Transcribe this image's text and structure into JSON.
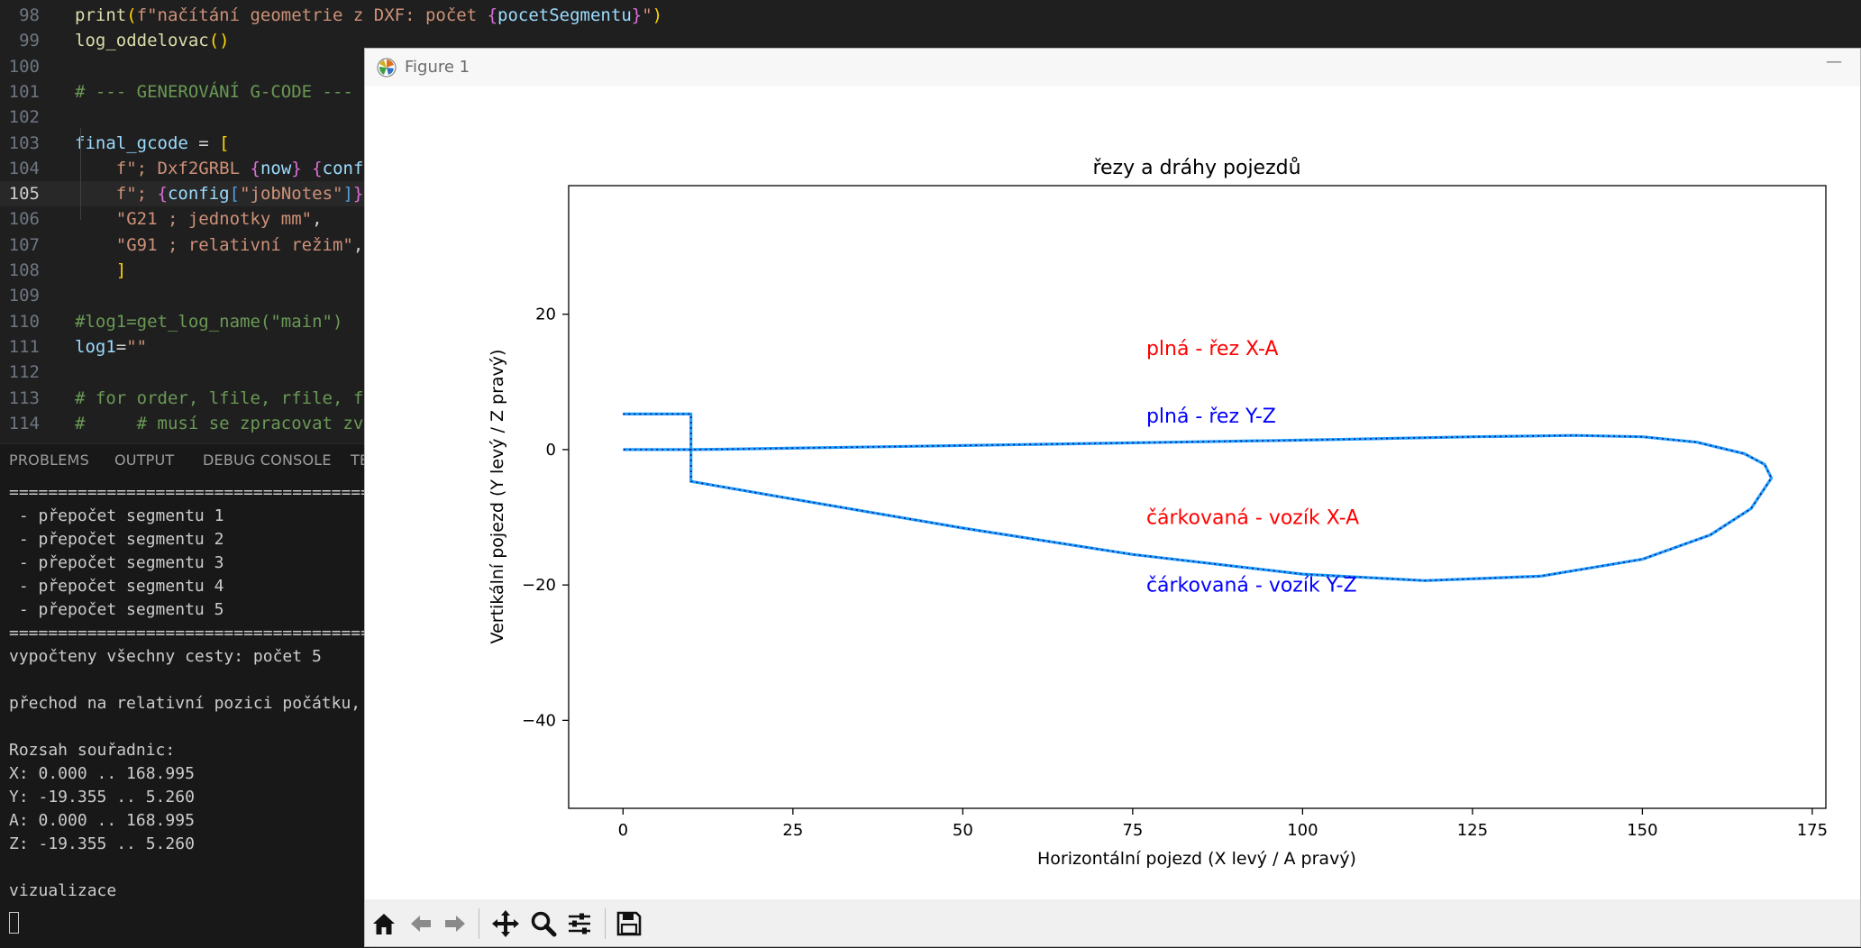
{
  "editor": {
    "lines": [
      {
        "num": "98",
        "active": false,
        "tokens": [
          {
            "t": "print",
            "c": "t-fn"
          },
          {
            "t": "(",
            "c": "t-br2"
          },
          {
            "t": "f\"načítání geometrie z DXF: počet ",
            "c": "t-str"
          },
          {
            "t": "{",
            "c": "t-brace"
          },
          {
            "t": "pocetSegmentu",
            "c": "t-var"
          },
          {
            "t": "}",
            "c": "t-brace"
          },
          {
            "t": "\"",
            "c": "t-str"
          },
          {
            "t": ")",
            "c": "t-br2"
          }
        ]
      },
      {
        "num": "99",
        "active": false,
        "tokens": [
          {
            "t": "log_oddelovac",
            "c": "t-fn"
          },
          {
            "t": "()",
            "c": "t-br2"
          }
        ]
      },
      {
        "num": "100",
        "active": false,
        "tokens": []
      },
      {
        "num": "101",
        "active": false,
        "tokens": [
          {
            "t": "# --- GENEROVÁNÍ G-CODE ---",
            "c": "t-cm"
          }
        ]
      },
      {
        "num": "102",
        "active": false,
        "tokens": []
      },
      {
        "num": "103",
        "active": false,
        "tokens": [
          {
            "t": "final_gcode",
            "c": "t-var"
          },
          {
            "t": " = ",
            "c": "t-op"
          },
          {
            "t": "[",
            "c": "t-br2"
          }
        ]
      },
      {
        "num": "104",
        "active": false,
        "tokens": [
          {
            "t": "    ",
            "c": "t-op"
          },
          {
            "t": "f\"; Dxf2GRBL ",
            "c": "t-str"
          },
          {
            "t": "{",
            "c": "t-brace"
          },
          {
            "t": "now",
            "c": "t-var"
          },
          {
            "t": "}",
            "c": "t-brace"
          },
          {
            "t": " ",
            "c": "t-str"
          },
          {
            "t": "{",
            "c": "t-brace"
          },
          {
            "t": "config",
            "c": "t-var"
          }
        ]
      },
      {
        "num": "105",
        "active": true,
        "tokens": [
          {
            "t": "    ",
            "c": "t-op"
          },
          {
            "t": "f\"; ",
            "c": "t-str"
          },
          {
            "t": "{",
            "c": "t-brace"
          },
          {
            "t": "config",
            "c": "t-var"
          },
          {
            "t": "[",
            "c": "t-kw"
          },
          {
            "t": "\"jobNotes\"",
            "c": "t-str"
          },
          {
            "t": "]",
            "c": "t-kw"
          },
          {
            "t": "}",
            "c": "t-brace"
          }
        ]
      },
      {
        "num": "106",
        "active": false,
        "tokens": [
          {
            "t": "    ",
            "c": "t-op"
          },
          {
            "t": "\"G21 ; jednotky mm\"",
            "c": "t-str"
          },
          {
            "t": ",",
            "c": "t-op"
          }
        ]
      },
      {
        "num": "107",
        "active": false,
        "tokens": [
          {
            "t": "    ",
            "c": "t-op"
          },
          {
            "t": "\"G91 ; relativní režim\"",
            "c": "t-str"
          },
          {
            "t": ",",
            "c": "t-op"
          }
        ]
      },
      {
        "num": "108",
        "active": false,
        "tokens": [
          {
            "t": "    ",
            "c": "t-op"
          },
          {
            "t": "]",
            "c": "t-br2"
          }
        ]
      },
      {
        "num": "109",
        "active": false,
        "tokens": []
      },
      {
        "num": "110",
        "active": false,
        "tokens": [
          {
            "t": "#log1=get_log_name(\"main\")",
            "c": "t-cm"
          }
        ]
      },
      {
        "num": "111",
        "active": false,
        "tokens": [
          {
            "t": "log1",
            "c": "t-var"
          },
          {
            "t": "=",
            "c": "t-op"
          },
          {
            "t": "\"\"",
            "c": "t-str"
          }
        ]
      },
      {
        "num": "112",
        "active": false,
        "tokens": []
      },
      {
        "num": "113",
        "active": false,
        "tokens": [
          {
            "t": "# for order, lfile, rfile, f",
            "c": "t-cm"
          }
        ]
      },
      {
        "num": "114",
        "active": false,
        "tokens": [
          {
            "t": "#     # musí se zpracovat zv",
            "c": "t-cm"
          }
        ]
      }
    ]
  },
  "panel": {
    "tabs": [
      "PROBLEMS",
      "OUTPUT",
      "DEBUG CONSOLE",
      "TE"
    ],
    "terminal_lines": [
      "==========================================",
      " - přepočet segmentu 1",
      " - přepočet segmentu 2",
      " - přepočet segmentu 3",
      " - přepočet segmentu 4",
      " - přepočet segmentu 5",
      "==========================================",
      "vypočteny všechny cesty: počet 5",
      "",
      "přechod na relativní pozici počátku,",
      "",
      "Rozsah souřadnic:",
      "X: 0.000 .. 168.995",
      "Y: -19.355 .. 5.260",
      "A: 0.000 .. 168.995",
      "Z: -19.355 .. 5.260",
      "",
      "vizualizace"
    ]
  },
  "figure": {
    "window_title": "Figure 1",
    "minimize_label": "—",
    "toolbar_icons": [
      "home-icon",
      "back-arrow-icon",
      "forward-arrow-icon",
      "pan-move-icon",
      "zoom-magnifier-icon",
      "configure-subplots-icon",
      "save-floppy-icon"
    ]
  },
  "chart_data": {
    "type": "line",
    "title": "řezy a dráhy pojezdů",
    "xlabel": "Horizontální pojezd (X levý / A pravý)",
    "ylabel": "Vertikální pojezd (Y levý / Z pravý)",
    "xlim": [
      -8,
      177
    ],
    "ylim": [
      -53,
      39
    ],
    "xticks": [
      0,
      25,
      50,
      75,
      100,
      125,
      150,
      175
    ],
    "yticks": [
      20,
      0,
      -20,
      -40
    ],
    "grid": false,
    "annotations": [
      {
        "text": "plná - řez X-A",
        "x": 77,
        "y": 14,
        "color": "#ff0000"
      },
      {
        "text": "plná - řez Y-Z",
        "x": 77,
        "y": 4,
        "color": "#0000ff"
      },
      {
        "text": "čárkovaná - vozík X-A",
        "x": 77,
        "y": -11,
        "color": "#ff0000"
      },
      {
        "text": "čárkovaná - vozík Y-Z",
        "x": 77,
        "y": -21,
        "color": "#0000ff"
      }
    ],
    "series": [
      {
        "style": "solid",
        "color": "#1f9fff",
        "points": [
          [
            0,
            5.26
          ],
          [
            10,
            5.26
          ],
          [
            10,
            -4.7
          ],
          [
            25,
            -7.3
          ],
          [
            50,
            -11.6
          ],
          [
            75,
            -15.5
          ],
          [
            100,
            -18.4
          ],
          [
            118,
            -19.355
          ],
          [
            135,
            -18.7
          ],
          [
            150,
            -16.2
          ],
          [
            160,
            -12.6
          ],
          [
            166,
            -8.7
          ],
          [
            168.995,
            -4.2
          ],
          [
            168,
            -2.2
          ],
          [
            165,
            -0.6
          ],
          [
            158,
            1.1
          ],
          [
            150,
            1.9
          ],
          [
            140,
            2.1
          ],
          [
            125,
            1.9
          ],
          [
            100,
            1.4
          ],
          [
            75,
            1.0
          ],
          [
            50,
            0.6
          ],
          [
            30,
            0.3
          ],
          [
            15,
            0.05
          ],
          [
            10,
            0
          ],
          [
            0,
            0
          ]
        ]
      },
      {
        "style": "dotted",
        "color": "#1a1a80",
        "points": [
          [
            0,
            5.26
          ],
          [
            10,
            5.26
          ],
          [
            10,
            -4.7
          ],
          [
            25,
            -7.3
          ],
          [
            50,
            -11.6
          ],
          [
            75,
            -15.5
          ],
          [
            100,
            -18.4
          ],
          [
            118,
            -19.355
          ],
          [
            135,
            -18.7
          ],
          [
            150,
            -16.2
          ],
          [
            160,
            -12.6
          ],
          [
            166,
            -8.7
          ],
          [
            168.995,
            -4.2
          ],
          [
            168,
            -2.2
          ],
          [
            165,
            -0.6
          ],
          [
            158,
            1.1
          ],
          [
            150,
            1.9
          ],
          [
            140,
            2.1
          ],
          [
            125,
            1.9
          ],
          [
            100,
            1.4
          ],
          [
            75,
            1.0
          ],
          [
            50,
            0.6
          ],
          [
            30,
            0.3
          ],
          [
            15,
            0.05
          ],
          [
            10,
            0
          ],
          [
            0,
            0
          ]
        ]
      }
    ]
  }
}
